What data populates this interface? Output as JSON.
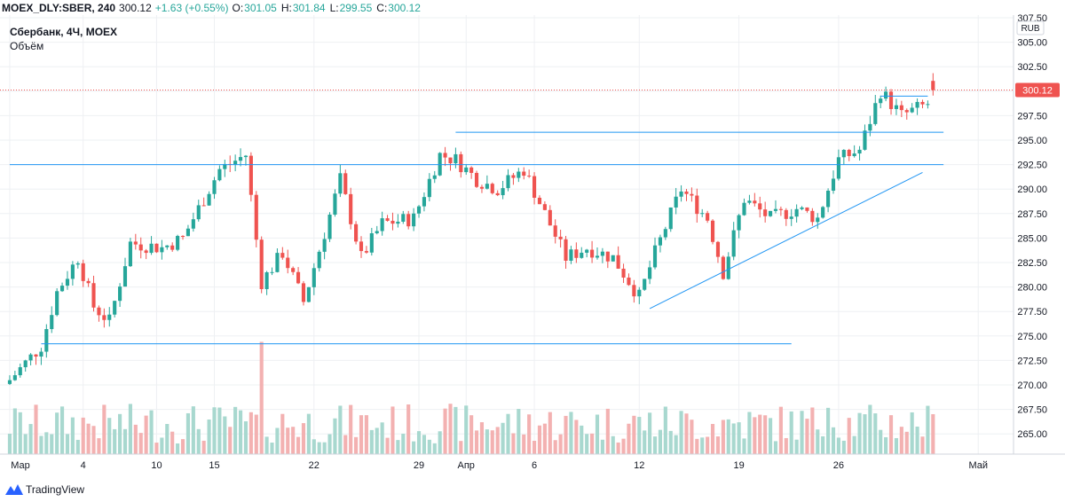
{
  "header": {
    "symbol": "MOEX_DLY:SBER, 240",
    "last": "300.12",
    "change": "+1.63 (+0.55%)",
    "o_label": "O:",
    "o": "301.05",
    "h_label": "H:",
    "h": "301.84",
    "l_label": "L:",
    "l": "299.55",
    "c_label": "C:",
    "c": "300.12"
  },
  "legend": {
    "title": "Сбербанк, 4Ч, MOEX",
    "volume_label": "Объём"
  },
  "footer": {
    "brand": "TradingView"
  },
  "colors": {
    "up": "#26a69a",
    "down": "#ef5350",
    "vol_up": "#a8d8cf",
    "vol_down": "#f3b1b1",
    "line": "#2196f3",
    "last": "#ef5350"
  },
  "chart_data": {
    "type": "candlestick",
    "title": "Сбербанк, 4Ч, MOEX",
    "currency": "RUB",
    "ylim": [
      263.5,
      307.5
    ],
    "y_ticks": [
      "307.50",
      "305.00",
      "302.50",
      "300.00",
      "297.50",
      "295.00",
      "292.50",
      "290.00",
      "287.50",
      "285.00",
      "282.50",
      "280.00",
      "277.50",
      "275.00",
      "272.50",
      "270.00",
      "267.50",
      "265.00"
    ],
    "x_tick_labels": [
      "Мар",
      "4",
      "10",
      "15",
      "22",
      "29",
      "Апр",
      "6",
      "12",
      "19",
      "26",
      "Май"
    ],
    "last_price": "300.12",
    "bars": 180,
    "ohlc_anchor_closes": [
      {
        "t": 0,
        "c": 270.5
      },
      {
        "t": 6,
        "c": 274.0
      },
      {
        "t": 9,
        "c": 279.5
      },
      {
        "t": 13,
        "c": 283.0
      },
      {
        "t": 16,
        "c": 278.0
      },
      {
        "t": 19,
        "c": 276.5
      },
      {
        "t": 23,
        "c": 284.5
      },
      {
        "t": 29,
        "c": 284.0
      },
      {
        "t": 33,
        "c": 285.0
      },
      {
        "t": 40,
        "c": 292.0
      },
      {
        "t": 45,
        "c": 293.5
      },
      {
        "t": 48,
        "c": 280.5
      },
      {
        "t": 52,
        "c": 283.5
      },
      {
        "t": 56,
        "c": 278.5
      },
      {
        "t": 60,
        "c": 285.5
      },
      {
        "t": 63,
        "c": 291.0
      },
      {
        "t": 67,
        "c": 283.0
      },
      {
        "t": 71,
        "c": 286.5
      },
      {
        "t": 77,
        "c": 287.0
      },
      {
        "t": 82,
        "c": 293.5
      },
      {
        "t": 85,
        "c": 293.0
      },
      {
        "t": 89,
        "c": 291.0
      },
      {
        "t": 93,
        "c": 290.0
      },
      {
        "t": 98,
        "c": 292.0
      },
      {
        "t": 102,
        "c": 287.5
      },
      {
        "t": 106,
        "c": 283.0
      },
      {
        "t": 110,
        "c": 284.0
      },
      {
        "t": 115,
        "c": 283.0
      },
      {
        "t": 120,
        "c": 279.0
      },
      {
        "t": 123,
        "c": 283.5
      },
      {
        "t": 128,
        "c": 290.0
      },
      {
        "t": 133,
        "c": 287.0
      },
      {
        "t": 136,
        "c": 281.5
      },
      {
        "t": 140,
        "c": 289.0
      },
      {
        "t": 145,
        "c": 287.0
      },
      {
        "t": 150,
        "c": 288.0
      },
      {
        "t": 154,
        "c": 287.0
      },
      {
        "t": 158,
        "c": 293.0
      },
      {
        "t": 162,
        "c": 294.0
      },
      {
        "t": 166,
        "c": 300.0
      },
      {
        "t": 170,
        "c": 297.5
      },
      {
        "t": 175,
        "c": 298.7
      },
      {
        "t": 176,
        "c": 300.12
      }
    ],
    "lines": [
      {
        "name": "support",
        "from": {
          "t": 6,
          "p": 274.2
        },
        "to": {
          "t": 149,
          "p": 274.2
        }
      },
      {
        "name": "resistance",
        "from": {
          "t": 0,
          "p": 292.5
        },
        "to": {
          "t": 178,
          "p": 292.5
        }
      },
      {
        "name": "resistance-2",
        "from": {
          "t": 85,
          "p": 295.8
        },
        "to": {
          "t": 178,
          "p": 295.8
        }
      },
      {
        "name": "trendline",
        "from": {
          "t": 122,
          "p": 277.8
        },
        "to": {
          "t": 174,
          "p": 291.7
        }
      },
      {
        "name": "high-line",
        "from": {
          "t": 166,
          "p": 299.5
        },
        "to": {
          "t": 175,
          "p": 299.5
        }
      }
    ]
  }
}
